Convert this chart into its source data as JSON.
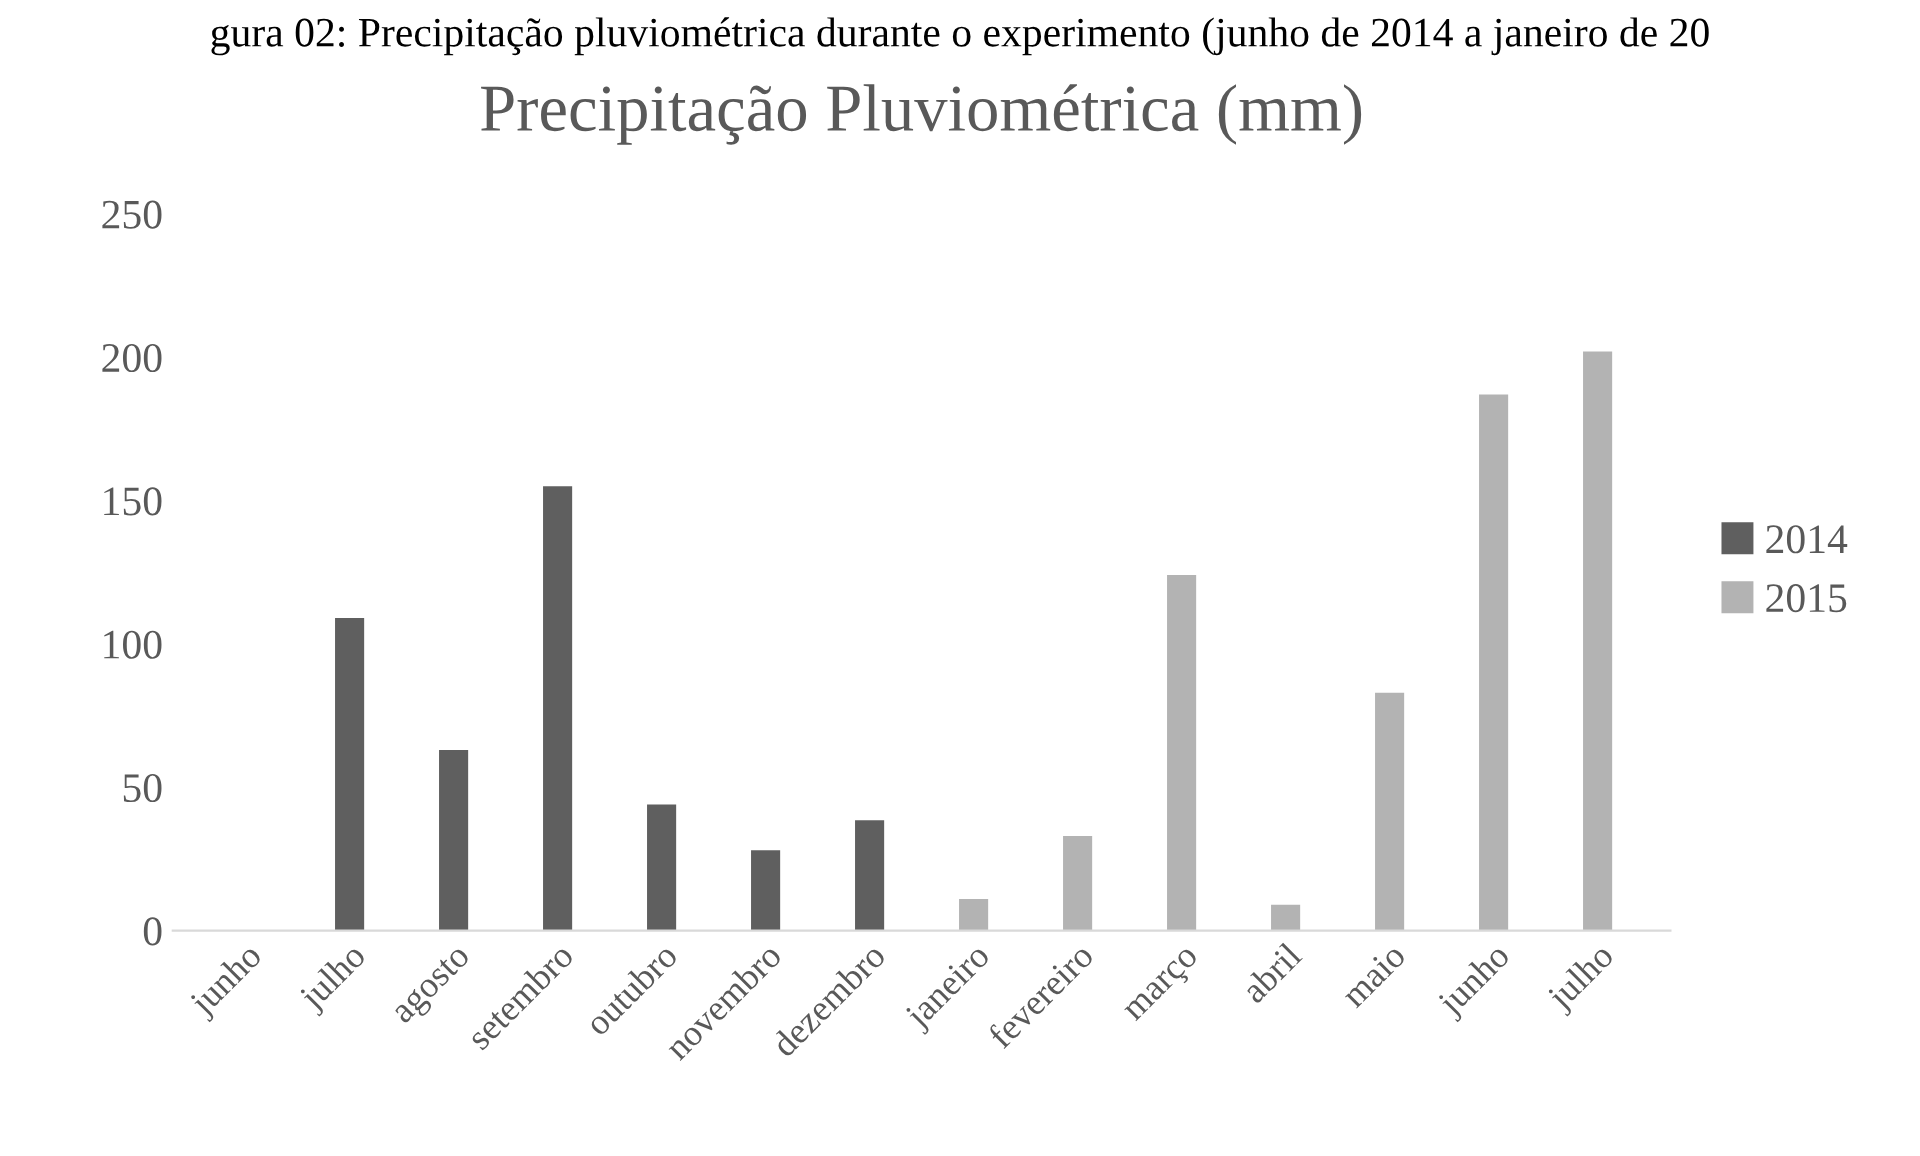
{
  "chart_data": {
    "type": "bar",
    "title": "Precipitação Pluviométrica (mm)",
    "annotations": [
      "gura 02: Precipitação pluviométrica durante o experimento (junho de 2014 a janeiro de 20"
    ],
    "categories": [
      "junho",
      "julho",
      "agosto",
      "setembro",
      "outubro",
      "novembro",
      "dezembro",
      "janeiro",
      "fevereiro",
      "março",
      "abril",
      "maio",
      "junho",
      "julho"
    ],
    "series": [
      {
        "name": "2014",
        "color": "#5f5f5f",
        "values": [
          0,
          109,
          63,
          155,
          44,
          28,
          38.5,
          null,
          null,
          null,
          null,
          null,
          null,
          null
        ]
      },
      {
        "name": "2015",
        "color": "#b3b3b3",
        "values": [
          null,
          null,
          null,
          null,
          null,
          null,
          null,
          11,
          33,
          124,
          9,
          83,
          187,
          202
        ]
      }
    ],
    "ylim": [
      0,
      250
    ],
    "yticks": [
      0,
      50,
      100,
      150,
      200,
      250
    ],
    "grid": false,
    "legend": "right"
  }
}
